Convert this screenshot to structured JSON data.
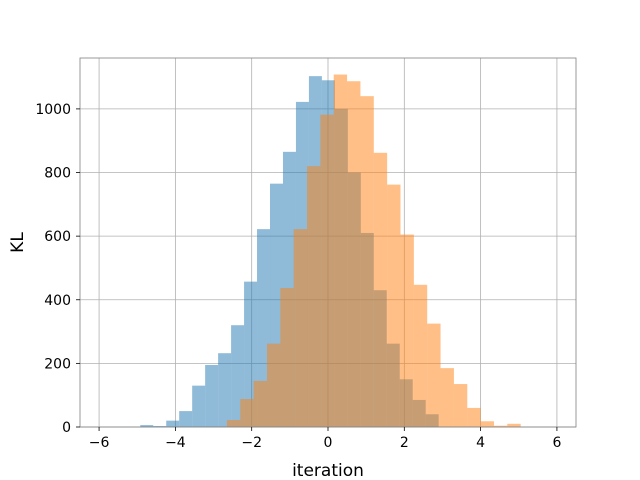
{
  "chart_data": {
    "type": "bar",
    "title": "",
    "xlabel": "iteration",
    "ylabel": "KL",
    "xlim": [
      -6.5,
      6.5
    ],
    "ylim": [
      0,
      1160
    ],
    "xticks": [
      -6,
      -4,
      -2,
      0,
      2,
      4,
      6
    ],
    "yticks": [
      0,
      200,
      400,
      600,
      800,
      1000
    ],
    "grid": true,
    "series": [
      {
        "color": "#1f77b4",
        "opacity": 0.5,
        "bins": [
          {
            "x0": -4.92,
            "x1": -4.58,
            "y": 6
          },
          {
            "x0": -4.58,
            "x1": -4.24,
            "y": 3
          },
          {
            "x0": -4.24,
            "x1": -3.9,
            "y": 20
          },
          {
            "x0": -3.9,
            "x1": -3.56,
            "y": 50
          },
          {
            "x0": -3.56,
            "x1": -3.22,
            "y": 130
          },
          {
            "x0": -3.22,
            "x1": -2.88,
            "y": 195
          },
          {
            "x0": -2.88,
            "x1": -2.54,
            "y": 232
          },
          {
            "x0": -2.54,
            "x1": -2.2,
            "y": 320
          },
          {
            "x0": -2.2,
            "x1": -1.86,
            "y": 457
          },
          {
            "x0": -1.86,
            "x1": -1.52,
            "y": 622
          },
          {
            "x0": -1.52,
            "x1": -1.18,
            "y": 765
          },
          {
            "x0": -1.18,
            "x1": -0.84,
            "y": 865
          },
          {
            "x0": -0.84,
            "x1": -0.5,
            "y": 1022
          },
          {
            "x0": -0.5,
            "x1": -0.16,
            "y": 1103
          },
          {
            "x0": -0.16,
            "x1": 0.18,
            "y": 1090
          },
          {
            "x0": 0.18,
            "x1": 0.52,
            "y": 1000
          },
          {
            "x0": 0.52,
            "x1": 0.86,
            "y": 800
          },
          {
            "x0": 0.86,
            "x1": 1.2,
            "y": 610
          },
          {
            "x0": 1.2,
            "x1": 1.54,
            "y": 430
          },
          {
            "x0": 1.54,
            "x1": 1.88,
            "y": 262
          },
          {
            "x0": 1.88,
            "x1": 2.22,
            "y": 150
          },
          {
            "x0": 2.22,
            "x1": 2.56,
            "y": 85
          },
          {
            "x0": 2.56,
            "x1": 2.9,
            "y": 40
          }
        ]
      },
      {
        "color": "#ff7f0e",
        "opacity": 0.5,
        "bins": [
          {
            "x0": -2.65,
            "x1": -2.3,
            "y": 22
          },
          {
            "x0": -2.3,
            "x1": -1.95,
            "y": 88
          },
          {
            "x0": -1.95,
            "x1": -1.6,
            "y": 145
          },
          {
            "x0": -1.6,
            "x1": -1.25,
            "y": 262
          },
          {
            "x0": -1.25,
            "x1": -0.9,
            "y": 437
          },
          {
            "x0": -0.9,
            "x1": -0.55,
            "y": 622
          },
          {
            "x0": -0.55,
            "x1": -0.2,
            "y": 820
          },
          {
            "x0": -0.2,
            "x1": 0.15,
            "y": 982
          },
          {
            "x0": 0.15,
            "x1": 0.5,
            "y": 1108
          },
          {
            "x0": 0.5,
            "x1": 0.85,
            "y": 1087
          },
          {
            "x0": 0.85,
            "x1": 1.2,
            "y": 1040
          },
          {
            "x0": 1.2,
            "x1": 1.55,
            "y": 862
          },
          {
            "x0": 1.55,
            "x1": 1.9,
            "y": 762
          },
          {
            "x0": 1.9,
            "x1": 2.25,
            "y": 605
          },
          {
            "x0": 2.25,
            "x1": 2.6,
            "y": 447
          },
          {
            "x0": 2.6,
            "x1": 2.95,
            "y": 325
          },
          {
            "x0": 2.95,
            "x1": 3.3,
            "y": 185
          },
          {
            "x0": 3.3,
            "x1": 3.65,
            "y": 135
          },
          {
            "x0": 3.65,
            "x1": 4.0,
            "y": 60
          },
          {
            "x0": 4.0,
            "x1": 4.35,
            "y": 18
          },
          {
            "x0": 4.35,
            "x1": 4.7,
            "y": 4
          },
          {
            "x0": 4.7,
            "x1": 5.05,
            "y": 10
          }
        ]
      }
    ]
  }
}
